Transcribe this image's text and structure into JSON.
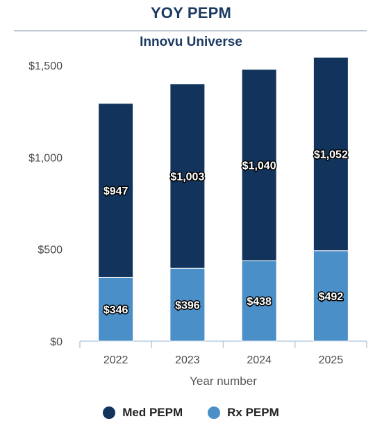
{
  "title": "YOY PEPM",
  "subtitle": "Innovu Universe",
  "colors": {
    "med": "#12345c",
    "rx": "#4a8fc7",
    "title": "#1b3a63"
  },
  "chart_data": {
    "type": "bar",
    "stacked": true,
    "categories": [
      "2022",
      "2023",
      "2024",
      "2025"
    ],
    "series": [
      {
        "name": "Rx PEPM",
        "values": [
          346,
          396,
          438,
          492
        ],
        "labels": [
          "$346",
          "$396",
          "$438",
          "$492"
        ]
      },
      {
        "name": "Med PEPM",
        "values": [
          947,
          1003,
          1040,
          1052
        ],
        "labels": [
          "$947",
          "$1,003",
          "$1,040",
          "$1,052"
        ]
      }
    ],
    "xlabel": "Year number",
    "ylabel": "",
    "ylim": [
      0,
      1500
    ],
    "yticks": [
      0,
      500,
      1000,
      1500
    ],
    "ytick_labels": [
      "$0",
      "$500",
      "$1,000",
      "$1,500"
    ],
    "grid": false,
    "legend": {
      "placement": "bottom",
      "entries": [
        "Med PEPM",
        "Rx PEPM"
      ]
    }
  }
}
